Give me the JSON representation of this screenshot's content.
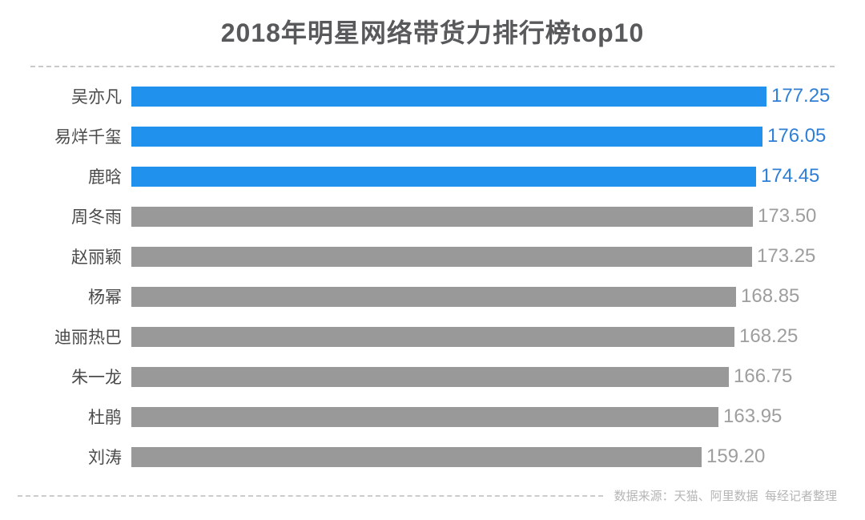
{
  "title": "2018年明星网络带货力排行榜top10",
  "footer": {
    "source_note": "数据来源：天猫、阿里数据  每经记者整理"
  },
  "colors": {
    "highlight_bar": "#2191ee",
    "highlight_value": "#2f7fd6",
    "default_bar": "#999999",
    "default_value": "#9e9e9e",
    "title_text": "#58595b",
    "category_text": "#4a4a4a",
    "divider": "#c9c9c9",
    "source_text": "#b5b5b5"
  },
  "chart_data": {
    "type": "bar",
    "orientation": "horizontal",
    "title": "2018年明星网络带货力排行榜top10",
    "categories": [
      "吴亦凡",
      "易烊千玺",
      "鹿晗",
      "周冬雨",
      "赵丽颖",
      "杨幂",
      "迪丽热巴",
      "朱一龙",
      "杜鹃",
      "刘涛"
    ],
    "values": [
      "177.25",
      "176.05",
      "174.45",
      "173.50",
      "173.25",
      "168.85",
      "168.25",
      "166.75",
      "163.95",
      "159.20"
    ],
    "highlight_top": 3,
    "xlim": [
      0,
      177.25
    ],
    "grid": false,
    "legend": false,
    "value_labels": "end-of-bar"
  }
}
